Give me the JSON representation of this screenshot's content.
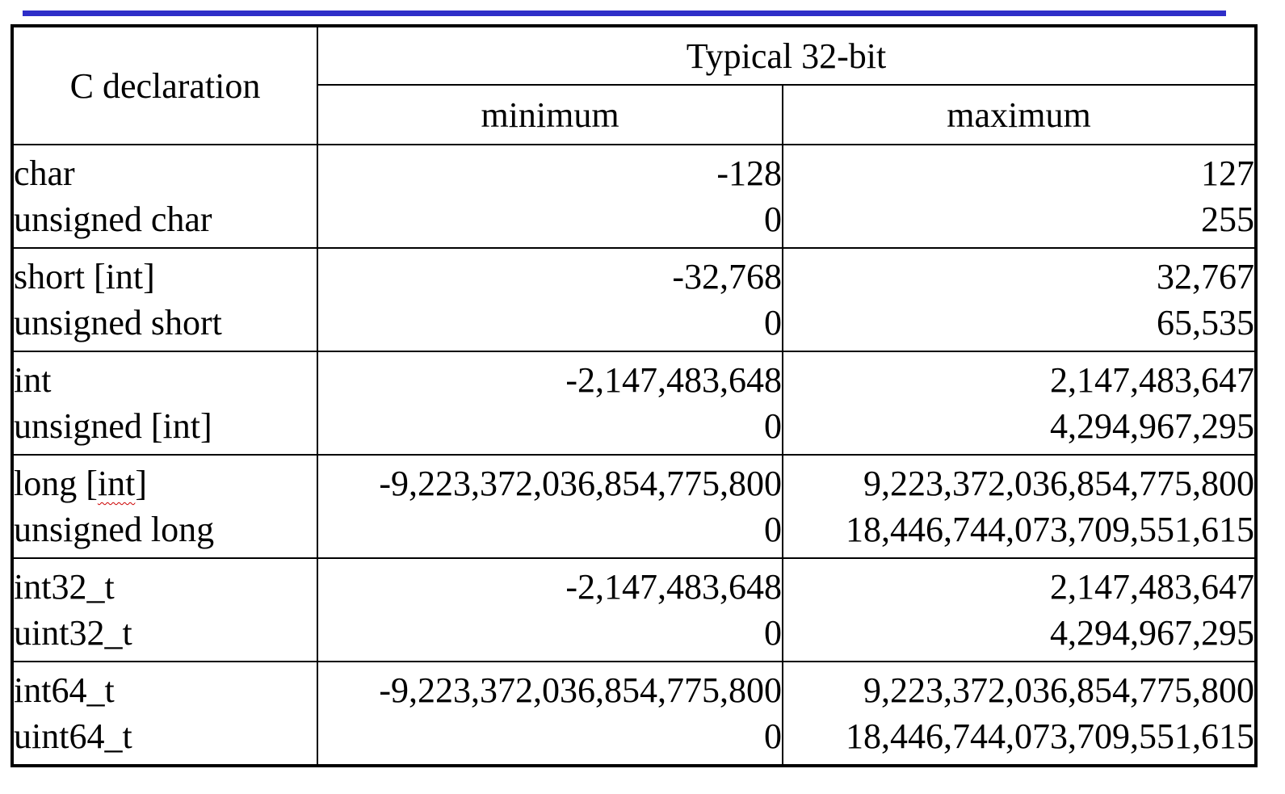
{
  "header": {
    "decl_label": "C declaration",
    "group_label": "Typical 32-bit",
    "min_label": "minimum",
    "max_label": "maximum"
  },
  "rows": [
    {
      "decl": [
        "char",
        "unsigned char"
      ],
      "min": [
        "-128",
        "0"
      ],
      "max": [
        "127",
        "255"
      ]
    },
    {
      "decl": [
        "short [int]",
        "unsigned short"
      ],
      "min": [
        "-32,768",
        "0"
      ],
      "max": [
        "32,767",
        "65,535"
      ]
    },
    {
      "decl": [
        "int",
        "unsigned [int]"
      ],
      "min": [
        "-2,147,483,648",
        "0"
      ],
      "max": [
        "2,147,483,647",
        "4,294,967,295"
      ]
    },
    {
      "decl": [
        "long [int]",
        "unsigned long"
      ],
      "min": [
        "-9,223,372,036,854,775,800",
        "0"
      ],
      "max": [
        "9,223,372,036,854,775,800",
        "18,446,744,073,709,551,615"
      ]
    },
    {
      "decl": [
        "int32_t",
        "uint32_t"
      ],
      "min": [
        "-2,147,483,648",
        "0"
      ],
      "max": [
        "2,147,483,647",
        "4,294,967,295"
      ]
    },
    {
      "decl": [
        "int64_t",
        "uint64_t"
      ],
      "min": [
        "-9,223,372,036,854,775,800",
        "0"
      ],
      "max": [
        "9,223,372,036,854,775,800",
        "18,446,744,073,709,551,615"
      ]
    }
  ],
  "colors": {
    "top_rule": "#2e2ec8",
    "spellcheck_underline": "#cc0000"
  }
}
